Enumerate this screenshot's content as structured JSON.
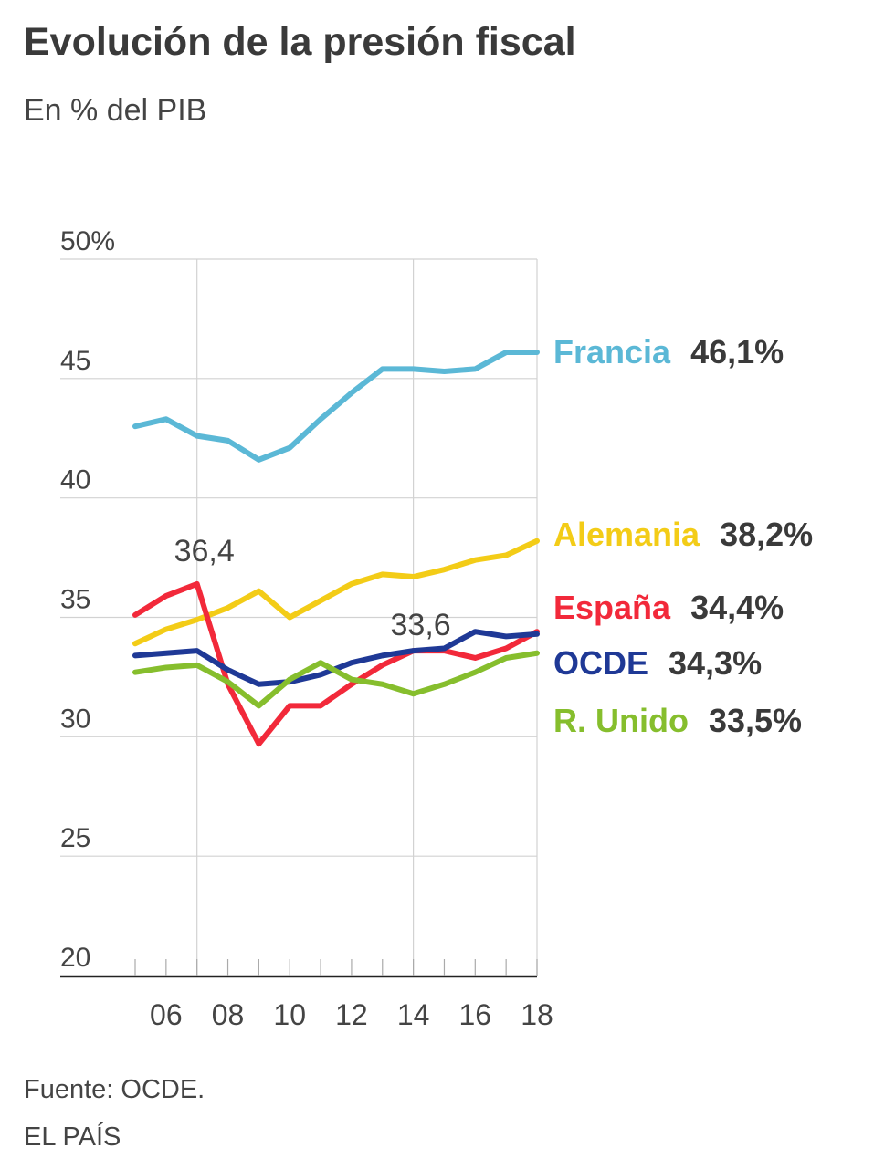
{
  "header": {
    "title": "Evolución de la presión fiscal",
    "subtitle": "En % del PIB"
  },
  "footer": {
    "source": "Fuente: OCDE.",
    "brand": "EL PAÍS"
  },
  "chart_data": {
    "type": "line",
    "title": "Evolución de la presión fiscal",
    "subtitle": "En % del PIB",
    "xlabel": "",
    "ylabel": "",
    "x": [
      2005,
      2006,
      2007,
      2008,
      2009,
      2010,
      2011,
      2012,
      2013,
      2014,
      2015,
      2016,
      2017,
      2018
    ],
    "x_ticks": [
      {
        "value": 2006,
        "label": "06"
      },
      {
        "value": 2008,
        "label": "08"
      },
      {
        "value": 2010,
        "label": "10"
      },
      {
        "value": 2012,
        "label": "12"
      },
      {
        "value": 2014,
        "label": "14"
      },
      {
        "value": 2016,
        "label": "16"
      },
      {
        "value": 2018,
        "label": "18"
      }
    ],
    "xlim": [
      2005,
      2018
    ],
    "ylim": [
      20,
      50
    ],
    "y_ticks": [
      {
        "value": 20,
        "label": "20"
      },
      {
        "value": 25,
        "label": "25"
      },
      {
        "value": 30,
        "label": "30"
      },
      {
        "value": 35,
        "label": "35"
      },
      {
        "value": 40,
        "label": "40"
      },
      {
        "value": 45,
        "label": "45"
      },
      {
        "value": 50,
        "label": "50%"
      }
    ],
    "x_gridlines": [
      2007,
      2014
    ],
    "series": [
      {
        "name": "Francia",
        "end_label": "46,1%",
        "color": "#5bb8d6",
        "values": [
          43.0,
          43.3,
          42.6,
          42.4,
          41.6,
          42.1,
          43.3,
          44.4,
          45.4,
          45.4,
          45.3,
          45.4,
          46.1,
          46.1
        ]
      },
      {
        "name": "Alemania",
        "end_label": "38,2%",
        "color": "#f3cc17",
        "values": [
          33.9,
          34.5,
          34.9,
          35.4,
          36.1,
          35.0,
          35.7,
          36.4,
          36.8,
          36.7,
          37.0,
          37.4,
          37.6,
          38.2
        ]
      },
      {
        "name": "España",
        "end_label": "34,4%",
        "color": "#f2293a",
        "values": [
          35.1,
          35.9,
          36.4,
          32.2,
          29.7,
          31.3,
          31.3,
          32.2,
          33.0,
          33.6,
          33.6,
          33.3,
          33.7,
          34.4
        ]
      },
      {
        "name": "OCDE",
        "end_label": "34,3%",
        "color": "#1f3996",
        "values": [
          33.4,
          33.5,
          33.6,
          32.8,
          32.2,
          32.3,
          32.6,
          33.1,
          33.4,
          33.6,
          33.7,
          34.4,
          34.2,
          34.3
        ]
      },
      {
        "name": "R. Unido",
        "end_label": "33,5%",
        "color": "#86be2d",
        "values": [
          32.7,
          32.9,
          33.0,
          32.3,
          31.3,
          32.4,
          33.1,
          32.4,
          32.2,
          31.8,
          32.2,
          32.7,
          33.3,
          33.5
        ]
      }
    ],
    "annotations": [
      {
        "text": "36,4",
        "series": "España",
        "x": 2007,
        "y": 36.4
      },
      {
        "text": "33,6",
        "series": "España",
        "x": 2014,
        "y": 33.6
      }
    ]
  }
}
